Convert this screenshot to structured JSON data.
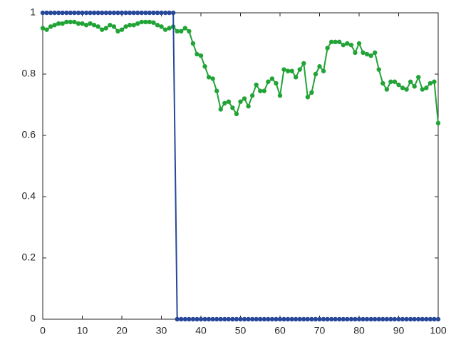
{
  "chart_data": {
    "type": "line",
    "x": [
      0,
      1,
      2,
      3,
      4,
      5,
      6,
      7,
      8,
      9,
      10,
      11,
      12,
      13,
      14,
      15,
      16,
      17,
      18,
      19,
      20,
      21,
      22,
      23,
      24,
      25,
      26,
      27,
      28,
      29,
      30,
      31,
      32,
      33,
      34,
      35,
      36,
      37,
      38,
      39,
      40,
      41,
      42,
      43,
      44,
      45,
      46,
      47,
      48,
      49,
      50,
      51,
      52,
      53,
      54,
      55,
      56,
      57,
      58,
      59,
      60,
      61,
      62,
      63,
      64,
      65,
      66,
      67,
      68,
      69,
      70,
      71,
      72,
      73,
      74,
      75,
      76,
      77,
      78,
      79,
      80,
      81,
      82,
      83,
      84,
      85,
      86,
      87,
      88,
      89,
      90,
      91,
      92,
      93,
      94,
      95,
      96,
      97,
      98,
      99,
      100
    ],
    "series": [
      {
        "color": "#21a336",
        "values": [
          0.95,
          0.945,
          0.955,
          0.96,
          0.965,
          0.965,
          0.97,
          0.97,
          0.97,
          0.965,
          0.965,
          0.96,
          0.965,
          0.96,
          0.955,
          0.945,
          0.95,
          0.96,
          0.955,
          0.94,
          0.945,
          0.955,
          0.96,
          0.96,
          0.965,
          0.97,
          0.97,
          0.97,
          0.968,
          0.96,
          0.955,
          0.945,
          0.95,
          0.955,
          0.94,
          0.94,
          0.95,
          0.94,
          0.9,
          0.865,
          0.86,
          0.825,
          0.79,
          0.785,
          0.745,
          0.685,
          0.705,
          0.71,
          0.69,
          0.67,
          0.71,
          0.72,
          0.695,
          0.73,
          0.765,
          0.745,
          0.745,
          0.775,
          0.785,
          0.77,
          0.73,
          0.815,
          0.81,
          0.81,
          0.79,
          0.815,
          0.835,
          0.725,
          0.74,
          0.8,
          0.825,
          0.81,
          0.885,
          0.905,
          0.905,
          0.905,
          0.895,
          0.9,
          0.895,
          0.87,
          0.9,
          0.87,
          0.865,
          0.86,
          0.87,
          0.815,
          0.77,
          0.75,
          0.775,
          0.775,
          0.765,
          0.755,
          0.75,
          0.775,
          0.76,
          0.79,
          0.75,
          0.755,
          0.77,
          0.775,
          0.64
        ]
      },
      {
        "color": "#27479a",
        "values": [
          1,
          1,
          1,
          1,
          1,
          1,
          1,
          1,
          1,
          1,
          1,
          1,
          1,
          1,
          1,
          1,
          1,
          1,
          1,
          1,
          1,
          1,
          1,
          1,
          1,
          1,
          1,
          1,
          1,
          1,
          1,
          1,
          1,
          1,
          0,
          0,
          0,
          0,
          0,
          0,
          0,
          0,
          0,
          0,
          0,
          0,
          0,
          0,
          0,
          0,
          0,
          0,
          0,
          0,
          0,
          0,
          0,
          0,
          0,
          0,
          0,
          0,
          0,
          0,
          0,
          0,
          0,
          0,
          0,
          0,
          0,
          0,
          0,
          0,
          0,
          0,
          0,
          0,
          0,
          0,
          0,
          0,
          0,
          0,
          0,
          0,
          0,
          0,
          0,
          0,
          0,
          0,
          0,
          0,
          0,
          0,
          0,
          0,
          0,
          0,
          0
        ]
      }
    ],
    "xlim": [
      0,
      100
    ],
    "xticks": [
      0,
      10,
      20,
      30,
      40,
      50,
      60,
      70,
      80,
      90,
      100
    ],
    "ylim": [
      0,
      1
    ],
    "yticks": [
      0,
      0.2,
      0.4,
      0.6,
      0.8,
      1
    ],
    "grid": false
  }
}
